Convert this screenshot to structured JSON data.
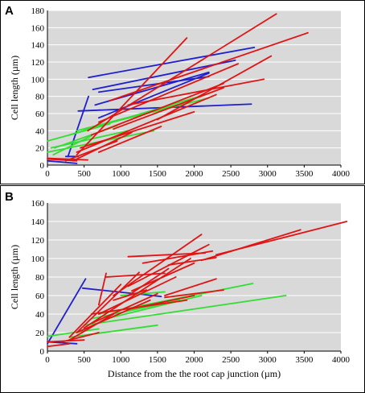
{
  "chart_data": [
    {
      "type": "line",
      "panel_label": "A",
      "xlabel": "",
      "ylabel": "Cell length (µm)",
      "xlim": [
        0,
        4000
      ],
      "ylim": [
        0,
        180
      ],
      "x_ticks": [
        "0",
        "500",
        "1000",
        "1500",
        "2000",
        "2500",
        "3000",
        "3500",
        "4000"
      ],
      "y_ticks": [
        "0",
        "20",
        "40",
        "60",
        "80",
        "100",
        "120",
        "140",
        "160",
        "180"
      ],
      "grid": true,
      "legend": "none",
      "colors": {
        "blue": "#1f1fcf",
        "red": "#e01414",
        "green": "#33dd33"
      },
      "series": [
        {
          "color": "blue",
          "segments": [
            [
              [
                280,
                10
              ],
              [
                560,
                80
              ]
            ],
            [
              [
                420,
                63
              ],
              [
                2780,
                71
              ]
            ],
            [
              [
                560,
                102
              ],
              [
                2820,
                137
              ]
            ],
            [
              [
                620,
                88
              ],
              [
                2560,
                122
              ]
            ],
            [
              [
                650,
                70
              ],
              [
                2200,
                108
              ]
            ],
            [
              [
                700,
                85
              ],
              [
                2200,
                103
              ]
            ],
            [
              [
                700,
                55
              ],
              [
                2200,
                107
              ]
            ],
            [
              [
                0,
                5
              ],
              [
                400,
                2
              ]
            ],
            [
              [
                250,
                10
              ],
              [
                420,
                10
              ]
            ]
          ]
        },
        {
          "color": "green",
          "segments": [
            [
              [
                0,
                28
              ],
              [
                850,
                48
              ]
            ],
            [
              [
                0,
                15
              ],
              [
                1450,
                40
              ]
            ],
            [
              [
                50,
                20
              ],
              [
                1100,
                40
              ]
            ],
            [
              [
                300,
                35
              ],
              [
                2150,
                82
              ]
            ],
            [
              [
                400,
                40
              ],
              [
                1850,
                72
              ]
            ],
            [
              [
                500,
                42
              ],
              [
                2200,
                78
              ]
            ],
            [
              [
                80,
                12
              ],
              [
                600,
                34
              ]
            ],
            [
              [
                100,
                20
              ],
              [
                950,
                46
              ]
            ]
          ]
        },
        {
          "color": "red",
          "segments": [
            [
              [
                0,
                8
              ],
              [
                550,
                6
              ]
            ],
            [
              [
                400,
                12
              ],
              [
                1900,
                148
              ]
            ],
            [
              [
                550,
                40
              ],
              [
                3120,
                176
              ]
            ],
            [
              [
                850,
                75
              ],
              [
                3550,
                154
              ]
            ],
            [
              [
                1500,
                53
              ],
              [
                3050,
                127
              ]
            ],
            [
              [
                700,
                50
              ],
              [
                2600,
                118
              ]
            ],
            [
              [
                1100,
                70
              ],
              [
                2950,
                100
              ]
            ],
            [
              [
                900,
                42
              ],
              [
                2400,
                90
              ]
            ],
            [
              [
                400,
                15
              ],
              [
                2300,
                82
              ]
            ],
            [
              [
                700,
                15
              ],
              [
                1550,
                45
              ]
            ],
            [
              [
                350,
                5
              ],
              [
                1150,
                38
              ]
            ],
            [
              [
                250,
                5
              ],
              [
                950,
                28
              ]
            ],
            [
              [
                450,
                20
              ],
              [
                2000,
                62
              ]
            ],
            [
              [
                600,
                35
              ],
              [
                2400,
                95
              ]
            ],
            [
              [
                0,
                7
              ],
              [
                400,
                5
              ]
            ]
          ]
        }
      ]
    },
    {
      "type": "line",
      "panel_label": "B",
      "xlabel": "Distance from the the root cap junction (µm)",
      "ylabel": "Cell length (µm)",
      "xlim": [
        0,
        4000
      ],
      "ylim": [
        0,
        160
      ],
      "x_ticks": [
        "0",
        "500",
        "1000",
        "1500",
        "2000",
        "2500",
        "3000",
        "3500",
        "4000"
      ],
      "y_ticks": [
        "0",
        "20",
        "40",
        "60",
        "80",
        "100",
        "120",
        "140",
        "160"
      ],
      "grid": true,
      "legend": "none",
      "colors": {
        "blue": "#1f1fcf",
        "red": "#e01414",
        "green": "#33dd33"
      },
      "series": [
        {
          "color": "blue",
          "segments": [
            [
              [
                0,
                8
              ],
              [
                520,
                78
              ]
            ],
            [
              [
                480,
                68
              ],
              [
                1550,
                59
              ]
            ],
            [
              [
                0,
                10
              ],
              [
                400,
                8
              ]
            ]
          ]
        },
        {
          "color": "green",
          "segments": [
            [
              [
                0,
                16
              ],
              [
                700,
                24
              ]
            ],
            [
              [
                300,
                15
              ],
              [
                1500,
                28
              ]
            ],
            [
              [
                500,
                28
              ],
              [
                3250,
                60
              ]
            ],
            [
              [
                700,
                40
              ],
              [
                2800,
                73
              ]
            ],
            [
              [
                800,
                35
              ],
              [
                2100,
                60
              ]
            ],
            [
              [
                600,
                35
              ],
              [
                1800,
                55
              ]
            ],
            [
              [
                1000,
                60
              ],
              [
                1600,
                64
              ]
            ]
          ]
        },
        {
          "color": "red",
          "segments": [
            [
              [
                0,
                10
              ],
              [
                500,
                12
              ]
            ],
            [
              [
                0,
                5
              ],
              [
                300,
                8
              ]
            ],
            [
              [
                200,
                10
              ],
              [
                700,
                20
              ]
            ],
            [
              [
                700,
                50
              ],
              [
                800,
                84
              ]
            ],
            [
              [
                300,
                15
              ],
              [
                1000,
                72
              ]
            ],
            [
              [
                400,
                20
              ],
              [
                1250,
                85
              ]
            ],
            [
              [
                800,
                80
              ],
              [
                1600,
                84
              ]
            ],
            [
              [
                1100,
                60
              ],
              [
                1650,
                89
              ]
            ],
            [
              [
                1150,
                65
              ],
              [
                2000,
                95
              ]
            ],
            [
              [
                500,
                25
              ],
              [
                1950,
                100
              ]
            ],
            [
              [
                900,
                60
              ],
              [
                2100,
                126
              ]
            ],
            [
              [
                1100,
                70
              ],
              [
                2200,
                115
              ]
            ],
            [
              [
                1300,
                95
              ],
              [
                2250,
                108
              ]
            ],
            [
              [
                1100,
                102
              ],
              [
                2150,
                106
              ]
            ],
            [
              [
                1650,
                93
              ],
              [
                2300,
                101
              ]
            ],
            [
              [
                2100,
                98
              ],
              [
                3450,
                131
              ]
            ],
            [
              [
                2300,
                104
              ],
              [
                4080,
                140
              ]
            ],
            [
              [
                1600,
                60
              ],
              [
                2300,
                78
              ]
            ],
            [
              [
                1100,
                45
              ],
              [
                2000,
                60
              ]
            ],
            [
              [
                600,
                40
              ],
              [
                1900,
                55
              ]
            ],
            [
              [
                1600,
                58
              ],
              [
                2400,
                66
              ]
            ],
            [
              [
                400,
                20
              ],
              [
                1400,
                55
              ]
            ],
            [
              [
                600,
                30
              ],
              [
                1500,
                62
              ]
            ],
            [
              [
                700,
                40
              ],
              [
                1750,
                80
              ]
            ],
            [
              [
                900,
                55
              ],
              [
                1350,
                66
              ]
            ],
            [
              [
                300,
                12
              ],
              [
                900,
                40
              ]
            ]
          ]
        }
      ]
    }
  ]
}
